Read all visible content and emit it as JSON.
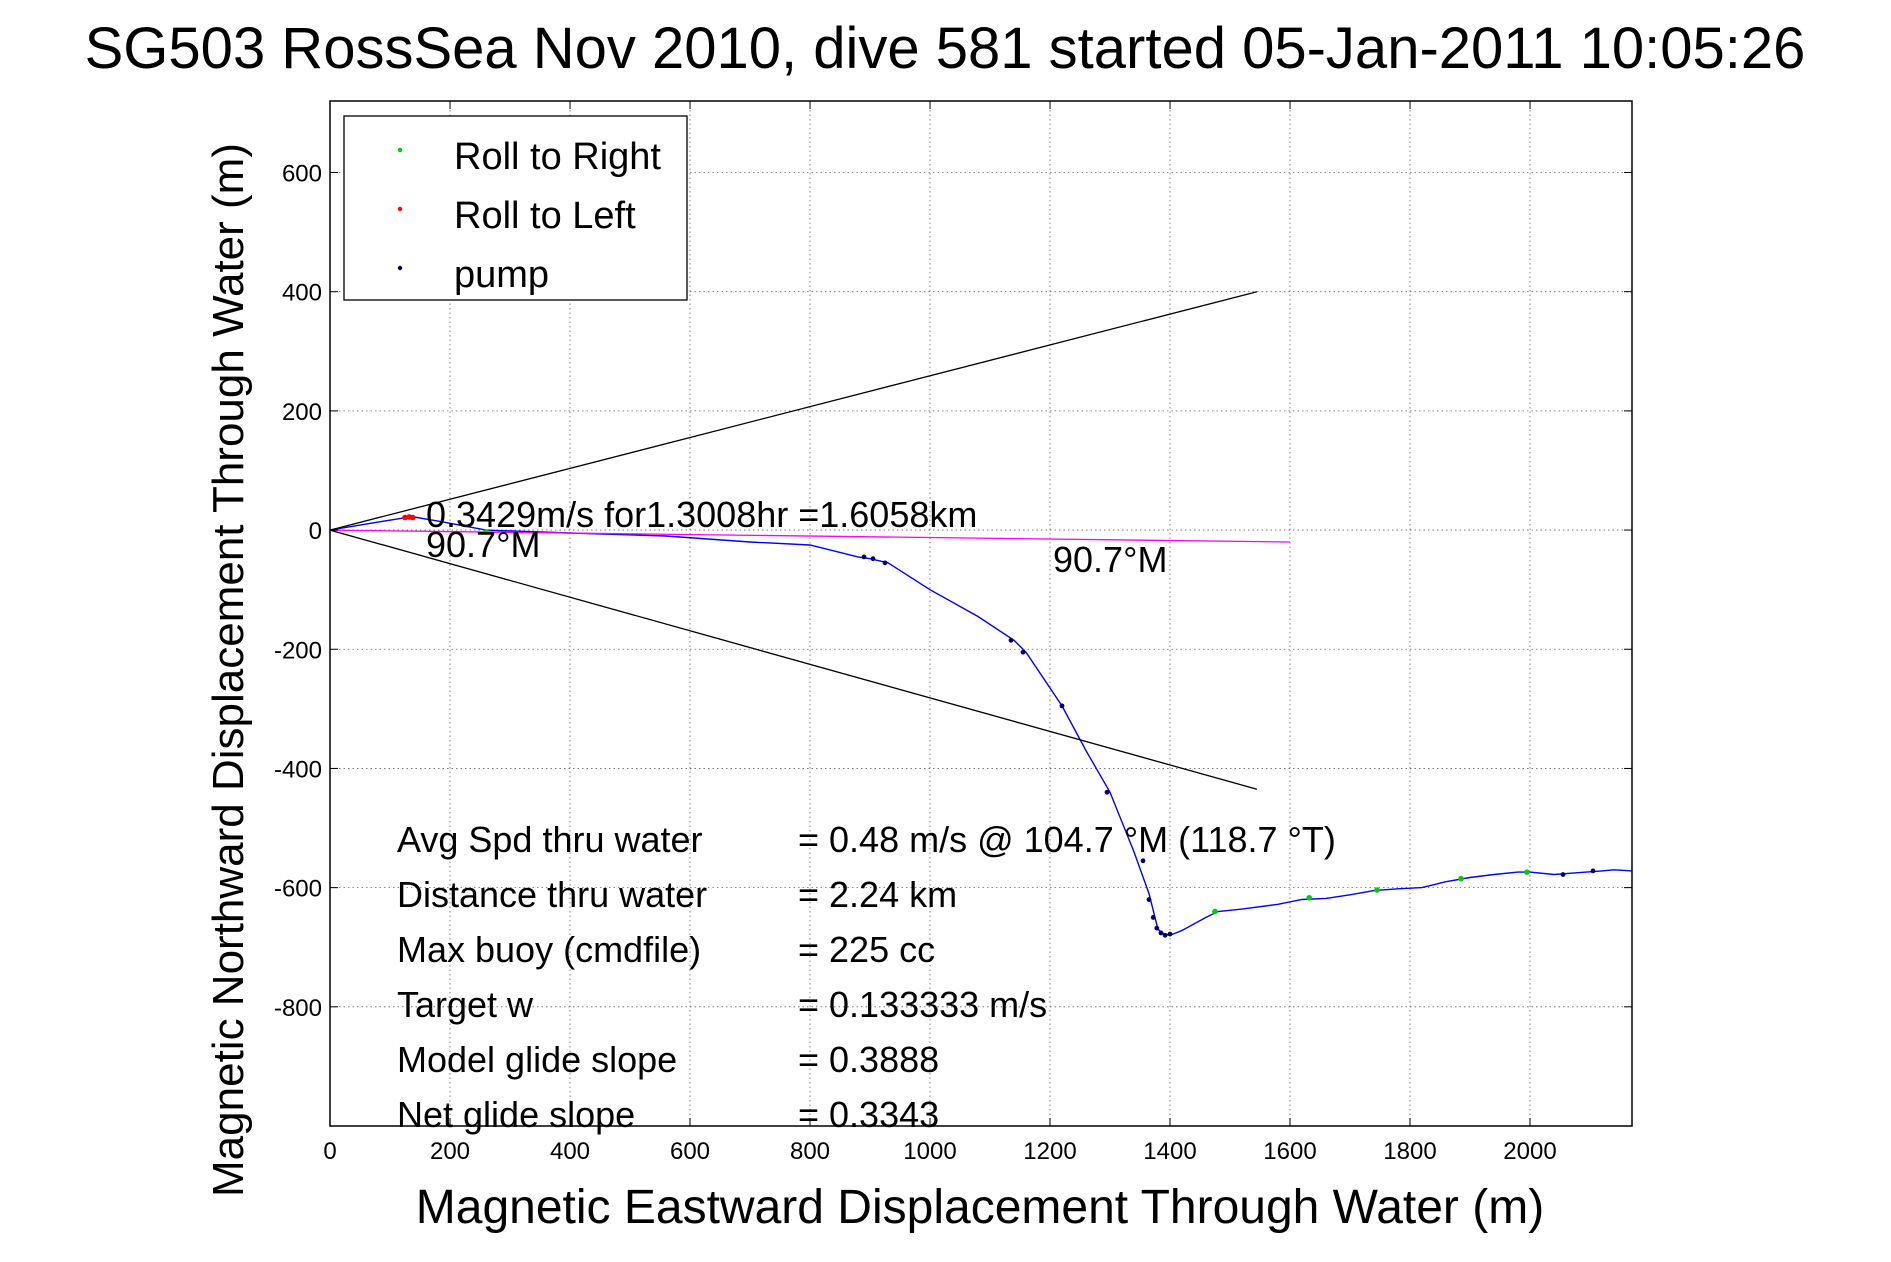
{
  "chart_data": {
    "type": "line",
    "title": "SG503 RossSea Nov 2010, dive 581 started 05-Jan-2011 10:05:26",
    "xlabel": "Magnetic Eastward Displacement Through Water (m)",
    "ylabel": "Magnetic Northward Displacement Through Water (m)",
    "xlim": [
      0,
      2170
    ],
    "ylim": [
      -1000,
      720
    ],
    "x_ticks": [
      0,
      200,
      400,
      600,
      800,
      1000,
      1200,
      1400,
      1600,
      1800,
      2000
    ],
    "x_tick_labels": [
      "0",
      "200",
      "400",
      "600",
      "800",
      "1000",
      "1200",
      "1400",
      "1600",
      "1800",
      "2000"
    ],
    "y_ticks": [
      600,
      400,
      200,
      0,
      -200,
      -400,
      -600,
      -800
    ],
    "y_tick_labels": [
      "600",
      "400",
      "200",
      "0",
      "-200",
      "-400",
      "-600",
      "-800"
    ],
    "grid": true,
    "legend_position": "top-left",
    "legend": [
      {
        "label": "Roll to Right",
        "color": "#00cc00"
      },
      {
        "label": "Roll to Left",
        "color": "#ff0000"
      },
      {
        "label": "pump",
        "color": "#000066"
      }
    ],
    "series": [
      {
        "name": "track",
        "color": "#0000ff",
        "x": [
          0,
          60,
          120,
          140,
          180,
          260,
          400,
          560,
          700,
          800,
          880,
          900,
          930,
          1000,
          1080,
          1140,
          1160,
          1220,
          1260,
          1300,
          1340,
          1365,
          1375,
          1380,
          1390,
          1400,
          1420,
          1460,
          1480,
          1520,
          1580,
          1620,
          1660,
          1700,
          1740,
          1780,
          1820,
          1860,
          1900,
          1940,
          1980,
          2000,
          2040,
          2080,
          2120,
          2140,
          2170
        ],
        "y": [
          0,
          10,
          20,
          22,
          15,
          0,
          -5,
          -10,
          -20,
          -25,
          -45,
          -48,
          -55,
          -100,
          -145,
          -185,
          -205,
          -295,
          -370,
          -440,
          -540,
          -610,
          -650,
          -670,
          -678,
          -680,
          -672,
          -650,
          -640,
          -636,
          -628,
          -620,
          -618,
          -612,
          -605,
          -602,
          -600,
          -590,
          -583,
          -578,
          -574,
          -574,
          -578,
          -575,
          -572,
          -570,
          -572
        ]
      },
      {
        "name": "depth-averaged current",
        "color": "#ff00ff",
        "x": [
          0,
          1600
        ],
        "y": [
          0,
          -20
        ]
      },
      {
        "name": "upper envelope",
        "color": "#000000",
        "x": [
          0,
          1545
        ],
        "y": [
          0,
          400
        ]
      },
      {
        "name": "lower envelope",
        "color": "#000000",
        "x": [
          0,
          1545
        ],
        "y": [
          0,
          -435
        ]
      }
    ],
    "roll_right_points": {
      "color": "#00cc00",
      "x": [
        260,
        1475,
        1632,
        1745,
        1885,
        1995
      ],
      "y": [
        -3,
        -640,
        -617,
        -604,
        -585,
        -574
      ]
    },
    "roll_left_points": {
      "color": "#ff0000",
      "x": [
        125,
        132,
        138
      ],
      "y": [
        21,
        22,
        21
      ]
    },
    "pump_points": {
      "color": "#000066",
      "x": [
        890,
        905,
        925,
        1135,
        1155,
        1220,
        1295,
        1355,
        1365,
        1372,
        1378,
        1385,
        1392,
        1400,
        2055,
        2105
      ],
      "y": [
        -45,
        -48,
        -55,
        -185,
        -205,
        -295,
        -440,
        -555,
        -620,
        -650,
        -668,
        -676,
        -680,
        -678,
        -578,
        -572
      ]
    },
    "annotations": [
      {
        "text": "0.3429m/s for1.3008hr =1.6058km",
        "x": 160,
        "y": 5
      },
      {
        "text": "90.7°M",
        "x": 160,
        "y": -45
      },
      {
        "text": "90.7°M",
        "x": 1205,
        "y": -70
      }
    ],
    "stats": [
      {
        "label": "Avg Spd thru water",
        "value": "=  0.48 m/s @ 104.7 °M (118.7 °T)"
      },
      {
        "label": "Distance thru water",
        "value": "=  2.24 km"
      },
      {
        "label": "Max buoy (cmdfile)",
        "value": "= 225 cc"
      },
      {
        "label": "Target w",
        "value": "= 0.133333 m/s"
      },
      {
        "label": "Model glide slope",
        "value": "= 0.3888"
      },
      {
        "label": "Net glide slope",
        "value": "= 0.3343"
      }
    ]
  }
}
